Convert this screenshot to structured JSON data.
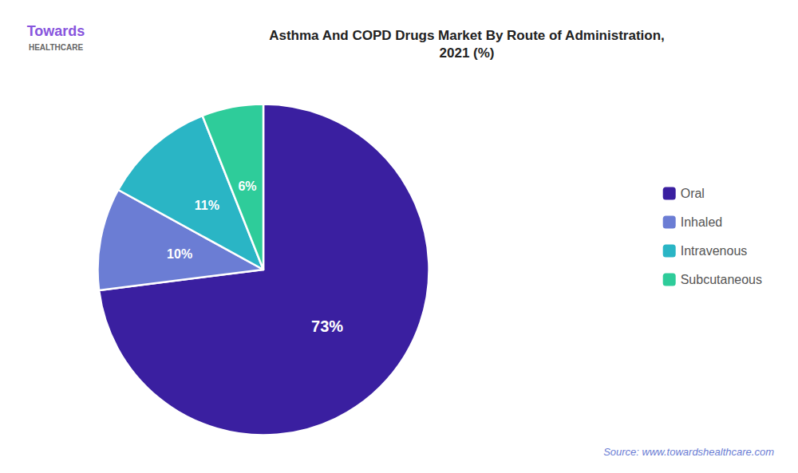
{
  "chart_data": {
    "type": "pie",
    "title": "Asthma And COPD Drugs Market By Route of Administration,\n2021 (%)",
    "categories": [
      "Oral",
      "Inhaled",
      "Intravenous",
      "Subcutaneous"
    ],
    "values": [
      73,
      10,
      11,
      6
    ],
    "value_labels": [
      "73%",
      "10%",
      "11%",
      "6%"
    ],
    "colors": [
      "#3a1fa0",
      "#6b7dd4",
      "#2ab5c5",
      "#2ecc9a"
    ],
    "data_labels": true,
    "legend": "right",
    "annotations": [
      "Towards",
      "HEALTHCARE",
      "Source: www.towardshealthcare.com"
    ]
  }
}
